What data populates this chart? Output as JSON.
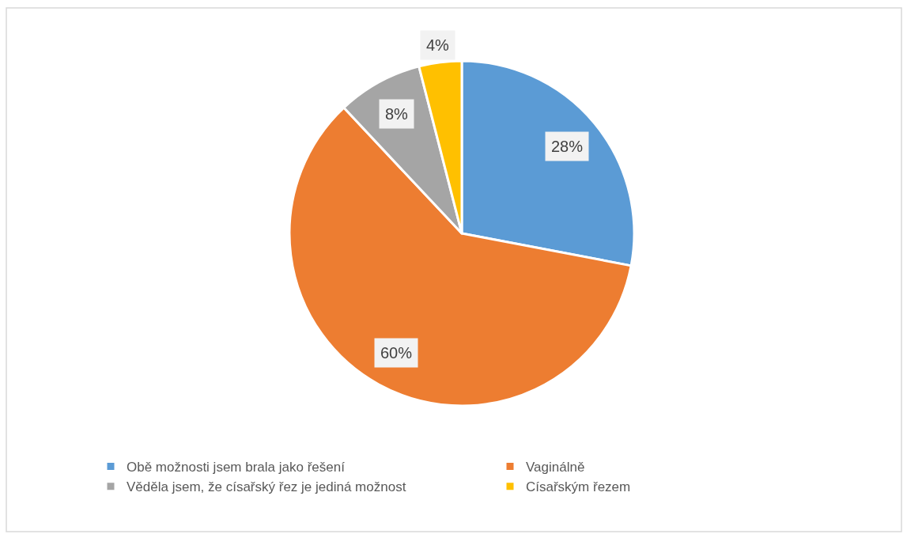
{
  "chart_data": {
    "type": "pie",
    "categories": [
      "Obě možnosti jsem brala jako řešení",
      "Vaginálně",
      "Věděla jsem, že císařský řez je jediná možnost",
      "Císařským řezem"
    ],
    "values": [
      28,
      60,
      8,
      4
    ],
    "colors": [
      "#5b9bd5",
      "#ed7d31",
      "#a5a5a5",
      "#ffc000"
    ],
    "value_labels": [
      "28%",
      "60%",
      "8%",
      "4%"
    ],
    "legend": "bottom"
  }
}
